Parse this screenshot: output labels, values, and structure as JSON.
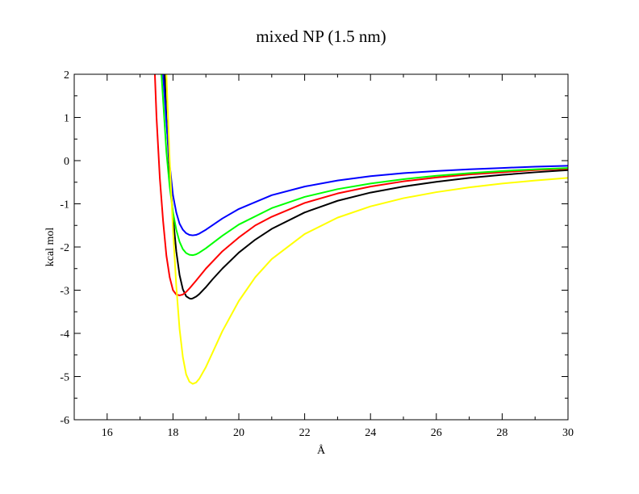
{
  "chart_data": {
    "type": "line",
    "title": "mixed NP (1.5 nm)",
    "xlabel": "Å",
    "ylabel": "kcal mol",
    "xlim": [
      15,
      30
    ],
    "ylim": [
      -6,
      2
    ],
    "x_ticks": [
      16,
      18,
      20,
      22,
      24,
      26,
      28,
      30
    ],
    "y_ticks": [
      -6,
      -5,
      -4,
      -3,
      -2,
      -1,
      0,
      1,
      2
    ],
    "grid": false,
    "legend": "none",
    "series": [
      {
        "color": "#000000",
        "x": [
          17.75,
          17.8,
          17.9,
          18.0,
          18.1,
          18.2,
          18.3,
          18.4,
          18.5,
          18.55,
          18.6,
          18.7,
          18.8,
          19.0,
          19.2,
          19.5,
          20.0,
          20.5,
          21.0,
          22.0,
          23.0,
          24.0,
          25.0,
          26.0,
          27.0,
          28.0,
          29.0,
          30.0
        ],
        "y": [
          2.0,
          1.0,
          -0.3,
          -1.3,
          -2.1,
          -2.65,
          -2.98,
          -3.14,
          -3.19,
          -3.2,
          -3.19,
          -3.15,
          -3.09,
          -2.93,
          -2.75,
          -2.5,
          -2.13,
          -1.83,
          -1.58,
          -1.2,
          -0.93,
          -0.74,
          -0.6,
          -0.49,
          -0.4,
          -0.33,
          -0.27,
          -0.22
        ]
      },
      {
        "color": "#ff0000",
        "x": [
          17.45,
          17.5,
          17.6,
          17.7,
          17.8,
          17.9,
          18.0,
          18.1,
          18.2,
          18.3,
          18.4,
          18.5,
          18.7,
          19.0,
          19.5,
          20.0,
          20.5,
          21.0,
          22.0,
          23.0,
          24.0,
          25.0,
          26.0,
          27.0,
          28.0,
          29.0,
          30.0
        ],
        "y": [
          2.0,
          1.0,
          -0.4,
          -1.4,
          -2.2,
          -2.7,
          -3.0,
          -3.1,
          -3.12,
          -3.1,
          -3.04,
          -2.96,
          -2.78,
          -2.5,
          -2.1,
          -1.78,
          -1.5,
          -1.3,
          -0.98,
          -0.76,
          -0.6,
          -0.48,
          -0.39,
          -0.32,
          -0.27,
          -0.22,
          -0.19
        ]
      },
      {
        "color": "#00ff00",
        "x": [
          17.65,
          17.7,
          17.8,
          17.9,
          18.0,
          18.1,
          18.2,
          18.3,
          18.4,
          18.5,
          18.6,
          18.7,
          18.8,
          19.0,
          19.5,
          20.0,
          21.0,
          22.0,
          23.0,
          24.0,
          25.0,
          26.0,
          27.0,
          28.0,
          29.0,
          30.0
        ],
        "y": [
          2.0,
          1.4,
          0.2,
          -0.6,
          -1.2,
          -1.6,
          -1.88,
          -2.05,
          -2.14,
          -2.18,
          -2.19,
          -2.17,
          -2.13,
          -2.03,
          -1.74,
          -1.48,
          -1.1,
          -0.84,
          -0.66,
          -0.53,
          -0.43,
          -0.35,
          -0.29,
          -0.24,
          -0.2,
          -0.17
        ]
      },
      {
        "color": "#0000ff",
        "x": [
          17.7,
          17.8,
          17.9,
          18.0,
          18.1,
          18.2,
          18.3,
          18.4,
          18.5,
          18.6,
          18.7,
          18.8,
          19.0,
          19.5,
          20.0,
          21.0,
          22.0,
          23.0,
          24.0,
          25.0,
          26.0,
          27.0,
          28.0,
          29.0,
          30.0
        ],
        "y": [
          2.0,
          0.9,
          -0.1,
          -0.8,
          -1.2,
          -1.46,
          -1.6,
          -1.68,
          -1.72,
          -1.73,
          -1.72,
          -1.69,
          -1.6,
          -1.34,
          -1.12,
          -0.8,
          -0.6,
          -0.46,
          -0.36,
          -0.29,
          -0.24,
          -0.2,
          -0.17,
          -0.14,
          -0.12
        ]
      },
      {
        "color": "#ffff00",
        "x": [
          17.8,
          17.85,
          17.9,
          18.0,
          18.1,
          18.2,
          18.3,
          18.4,
          18.5,
          18.6,
          18.7,
          18.8,
          19.0,
          19.2,
          19.5,
          20.0,
          20.5,
          21.0,
          22.0,
          23.0,
          24.0,
          25.0,
          26.0,
          27.0,
          28.0,
          29.0,
          30.0
        ],
        "y": [
          2.0,
          1.0,
          0.0,
          -1.6,
          -2.9,
          -3.9,
          -4.55,
          -4.95,
          -5.12,
          -5.17,
          -5.14,
          -5.05,
          -4.78,
          -4.45,
          -3.95,
          -3.25,
          -2.7,
          -2.28,
          -1.7,
          -1.32,
          -1.06,
          -0.87,
          -0.73,
          -0.62,
          -0.53,
          -0.46,
          -0.4
        ]
      }
    ]
  }
}
